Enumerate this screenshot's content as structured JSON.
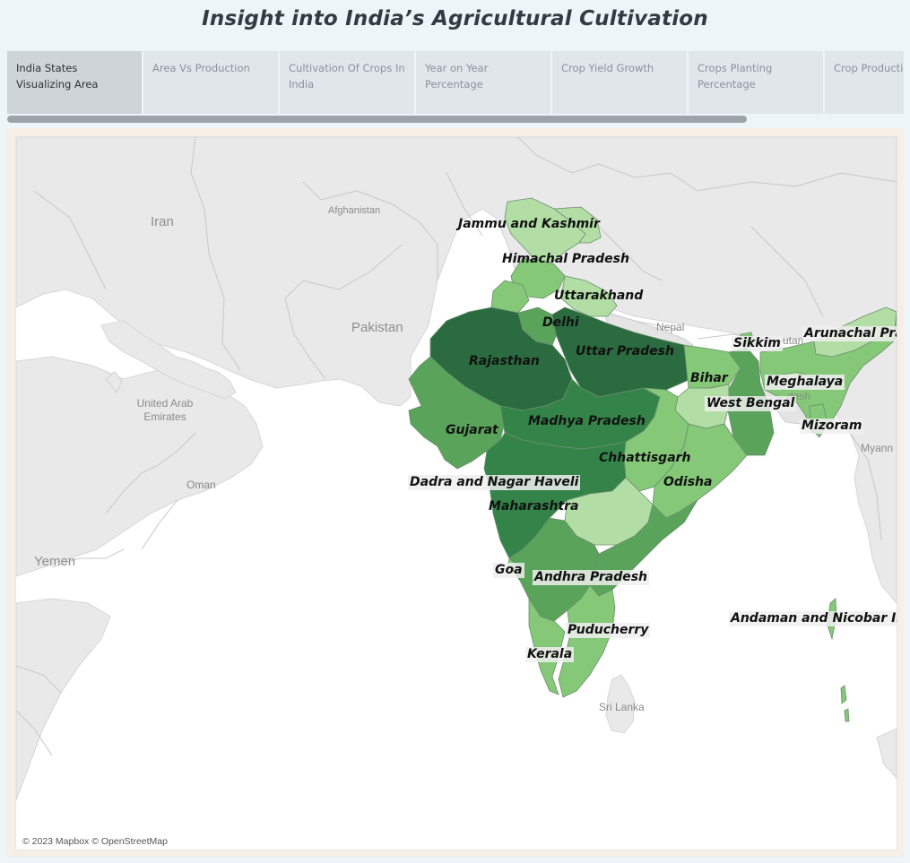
{
  "title": "Insight into India’s Agricultural Cultivation",
  "tabs": [
    {
      "label": "India States Visualizing Area"
    },
    {
      "label": "Area Vs Production"
    },
    {
      "label": "Cultivation Of Crops In India"
    },
    {
      "label": "Year on Year Percentage"
    },
    {
      "label": "Crop Yield Growth"
    },
    {
      "label": "Crops Planting Percentage"
    },
    {
      "label": "Crop Production I..."
    }
  ],
  "map": {
    "places": {
      "iran": "Iran",
      "afghanistan": "Afghanistan",
      "pakistan": "Pakistan",
      "nepal": "Nepal",
      "uae": "United Arab Emirates",
      "oman": "Oman",
      "yemen": "Yemen",
      "sri_lanka": "Sri Lanka",
      "bhutan": "utan",
      "bangladesh": "desh",
      "myanmar": "Myann"
    },
    "states": {
      "jammu_kashmir": "Jammu and Kashmir",
      "himachal": "Himachal Pradesh",
      "uttarakhand": "Uttarakhand",
      "delhi": "Delhi",
      "rajasthan": "Rajasthan",
      "uttar_pradesh": "Uttar Pradesh",
      "bihar": "Bihar",
      "sikkim": "Sikkim",
      "arunachal": "Arunachal Pra",
      "meghalaya": "Meghalaya",
      "west_bengal": "West Bengal",
      "mizoram": "Mizoram",
      "gujarat": "Gujarat",
      "madhya_pradesh": "Madhya Pradesh",
      "chhattisgarh": "Chhattisgarh",
      "odisha": "Odisha",
      "dadra": "Dadra and Nagar Haveli",
      "maharashtra": "Maharashtra",
      "goa": "Goa",
      "andhra": "Andhra Pradesh",
      "puducherry": "Puducherry",
      "kerala": "Kerala",
      "andaman": "Andaman and Nicobar Isl"
    },
    "attribution": "© 2023 Mapbox © OpenStreetMap"
  },
  "colors": {
    "darkest": "#2a6b40",
    "dark": "#34844a",
    "medium": "#5aa35b",
    "light": "#84c878",
    "lightest": "#b2dea6",
    "land": "#e9e9e9",
    "water": "#ffffff"
  }
}
